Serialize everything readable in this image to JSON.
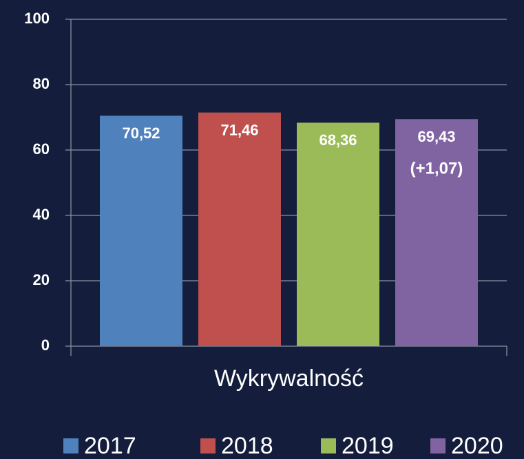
{
  "chart_data": {
    "type": "bar",
    "categories": [
      "Wykrywalność"
    ],
    "series": [
      {
        "name": "2017",
        "color": "#4f81bd",
        "values": [
          70.52
        ],
        "value_labels": [
          "70,52"
        ]
      },
      {
        "name": "2018",
        "color": "#c0504d",
        "values": [
          71.46
        ],
        "value_labels": [
          "71,46"
        ]
      },
      {
        "name": "2019",
        "color": "#9bbb59",
        "values": [
          68.36
        ],
        "value_labels": [
          "68,36"
        ]
      },
      {
        "name": "2020",
        "color": "#8064a2",
        "values": [
          69.43
        ],
        "value_labels": [
          "69,43"
        ]
      }
    ],
    "annotation": "(+1,07)",
    "ylim": [
      0,
      100
    ],
    "yticks": [
      0,
      20,
      40,
      60,
      80,
      100
    ],
    "grid": true,
    "legend": "bottom"
  }
}
